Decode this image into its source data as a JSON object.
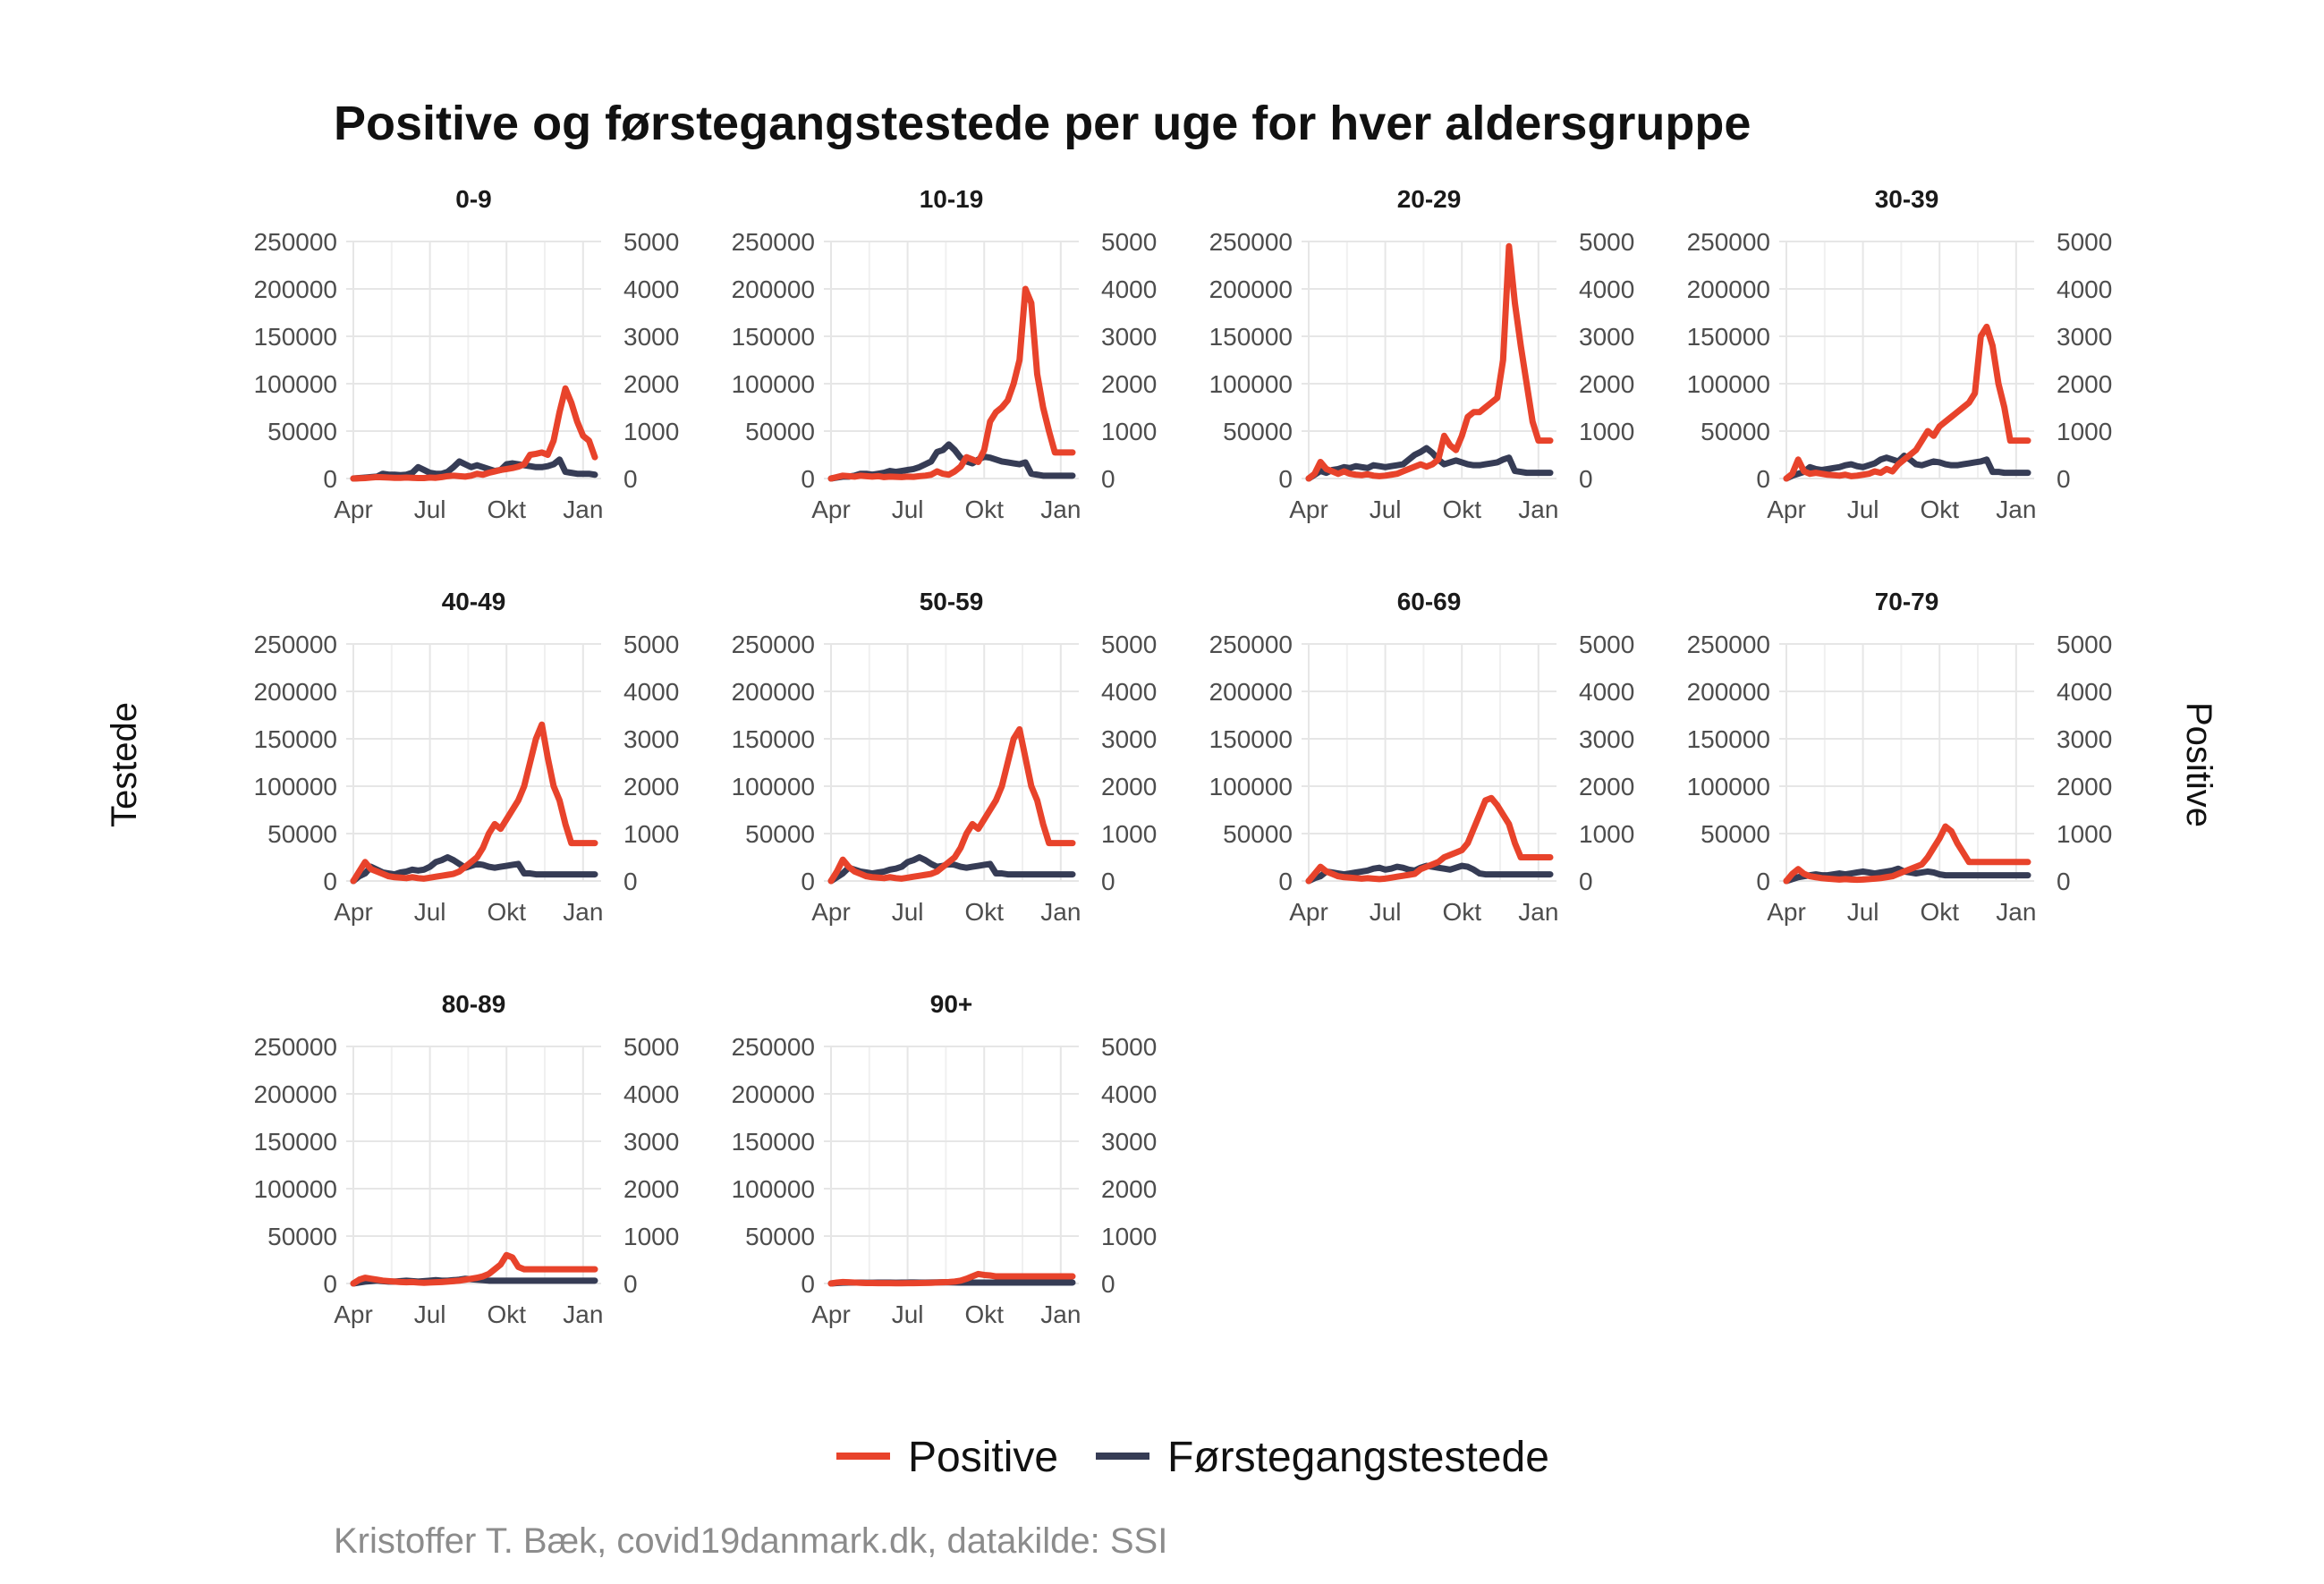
{
  "chart_data": {
    "type": "line",
    "title": "Positive og førstegangstestede per uge for hver aldersgruppe",
    "ylabel_left": "Testede",
    "ylabel_right": "Positive",
    "caption": "Kristoffer T. Bæk, covid19danmark.dk, datakilde: SSI",
    "x_tick_labels": [
      "Apr",
      "Jul",
      "Okt",
      "Jan"
    ],
    "y_left_ticks": [
      "0",
      "50000",
      "100000",
      "150000",
      "200000",
      "250000"
    ],
    "y_right_ticks": [
      "0",
      "1000",
      "2000",
      "3000",
      "4000",
      "5000"
    ],
    "ylim_left": [
      0,
      250000
    ],
    "ylim_right": [
      0,
      5000
    ],
    "weeks": [
      1,
      2,
      3,
      4,
      5,
      6,
      7,
      8,
      9,
      10,
      11,
      12,
      13,
      14,
      15,
      16,
      17,
      18,
      19,
      20,
      21,
      22,
      23,
      24,
      25,
      26,
      27,
      28,
      29,
      30,
      31,
      32,
      33,
      34,
      35,
      36,
      37,
      38,
      39,
      40,
      41,
      42
    ],
    "grid": true,
    "legend_position": "bottom",
    "colors": {
      "Positive": "#e8432b",
      "Førstegangstestede": "#363c55"
    },
    "legend": [
      "Positive",
      "Førstegangstestede"
    ],
    "series": [
      {
        "name": "Positive",
        "axis": "right"
      },
      {
        "name": "Førstegangstestede",
        "axis": "left"
      }
    ],
    "facets": [
      {
        "label": "0-9",
        "positive": [
          0,
          5,
          10,
          20,
          30,
          25,
          20,
          15,
          15,
          20,
          15,
          10,
          10,
          20,
          15,
          30,
          50,
          60,
          50,
          40,
          60,
          100,
          80,
          120,
          150,
          180,
          200,
          220,
          250,
          300,
          500,
          520,
          550,
          500,
          800,
          1400,
          1900,
          1600,
          1200,
          900,
          800,
          450
        ],
        "testede": [
          0,
          500,
          1000,
          1500,
          2000,
          5000,
          4000,
          4000,
          3500,
          4000,
          6000,
          12000,
          9000,
          6000,
          5000,
          5000,
          7000,
          12000,
          18000,
          15000,
          12000,
          14000,
          12000,
          10000,
          8000,
          9000,
          15000,
          16000,
          15000,
          14000,
          13000,
          12000,
          12000,
          13000,
          15000,
          20000,
          7000,
          6000,
          5000,
          5000,
          5000,
          4000
        ]
      },
      {
        "label": "10-19",
        "positive": [
          0,
          30,
          60,
          50,
          40,
          60,
          50,
          40,
          50,
          30,
          40,
          35,
          30,
          40,
          35,
          50,
          60,
          80,
          150,
          100,
          80,
          150,
          250,
          450,
          400,
          350,
          600,
          1200,
          1400,
          1500,
          1650,
          2000,
          2500,
          4000,
          3700,
          2200,
          1500,
          1000,
          550,
          550,
          550,
          550
        ],
        "testede": [
          0,
          1000,
          2000,
          2000,
          3000,
          5000,
          5000,
          4000,
          5000,
          6000,
          8000,
          7000,
          8000,
          9000,
          10000,
          12000,
          15000,
          18000,
          28000,
          30000,
          36000,
          30000,
          22000,
          18000,
          16000,
          20000,
          23000,
          22000,
          20000,
          18000,
          17000,
          16000,
          15000,
          17000,
          5000,
          4000,
          3000,
          3000,
          3000,
          3000,
          3000,
          3000
        ]
      },
      {
        "label": "20-29",
        "positive": [
          0,
          100,
          350,
          200,
          150,
          100,
          150,
          100,
          80,
          70,
          90,
          60,
          50,
          60,
          80,
          100,
          150,
          200,
          250,
          300,
          250,
          300,
          400,
          900,
          700,
          600,
          900,
          1300,
          1400,
          1400,
          1500,
          1600,
          1700,
          2500,
          4900,
          3700,
          2800,
          2000,
          1200,
          800,
          800,
          800
        ],
        "testede": [
          0,
          4000,
          8000,
          6000,
          9000,
          10000,
          12000,
          11000,
          13000,
          12000,
          11000,
          14000,
          13000,
          12000,
          13000,
          14000,
          15000,
          20000,
          25000,
          28000,
          32000,
          27000,
          20000,
          15000,
          17000,
          19000,
          17000,
          15000,
          14000,
          14000,
          15000,
          16000,
          17000,
          20000,
          22000,
          8000,
          7000,
          6000,
          6000,
          6000,
          6000,
          6000
        ]
      },
      {
        "label": "30-39",
        "positive": [
          0,
          100,
          400,
          150,
          100,
          120,
          100,
          80,
          70,
          60,
          80,
          50,
          60,
          80,
          100,
          150,
          120,
          200,
          150,
          300,
          400,
          500,
          600,
          800,
          1000,
          900,
          1100,
          1200,
          1300,
          1400,
          1500,
          1600,
          1800,
          3000,
          3200,
          2800,
          2000,
          1500,
          800,
          800,
          800,
          800
        ],
        "testede": [
          0,
          3000,
          5000,
          7000,
          12000,
          10000,
          9000,
          10000,
          11000,
          12000,
          14000,
          15000,
          13000,
          12000,
          14000,
          16000,
          20000,
          22000,
          20000,
          18000,
          24000,
          20000,
          15000,
          14000,
          16000,
          18000,
          17000,
          15000,
          14000,
          14000,
          15000,
          16000,
          17000,
          18000,
          20000,
          7000,
          7000,
          6000,
          6000,
          6000,
          6000,
          6000
        ]
      },
      {
        "label": "40-49",
        "positive": [
          0,
          200,
          400,
          250,
          200,
          150,
          100,
          80,
          70,
          60,
          80,
          60,
          50,
          70,
          90,
          110,
          130,
          150,
          200,
          300,
          400,
          500,
          700,
          1000,
          1200,
          1100,
          1300,
          1500,
          1700,
          2000,
          2500,
          3000,
          3300,
          2600,
          2000,
          1700,
          1200,
          800,
          800,
          800,
          800,
          800
        ],
        "testede": [
          0,
          5000,
          8000,
          15000,
          12000,
          9000,
          8000,
          7000,
          9000,
          10000,
          12000,
          11000,
          12000,
          15000,
          20000,
          22000,
          25000,
          22000,
          18000,
          14000,
          16000,
          18000,
          17000,
          15000,
          14000,
          15000,
          16000,
          17000,
          18000,
          8000,
          8000,
          7000,
          7000,
          7000,
          7000,
          7000,
          7000,
          7000,
          7000,
          7000,
          7000,
          7000
        ]
      },
      {
        "label": "50-59",
        "positive": [
          0,
          200,
          450,
          300,
          200,
          150,
          100,
          80,
          70,
          60,
          80,
          60,
          50,
          70,
          90,
          110,
          130,
          150,
          200,
          300,
          400,
          500,
          700,
          1000,
          1200,
          1100,
          1300,
          1500,
          1700,
          2000,
          2500,
          3000,
          3200,
          2600,
          2000,
          1700,
          1200,
          800,
          800,
          800,
          800,
          800
        ],
        "testede": [
          0,
          4000,
          8000,
          14000,
          12000,
          10000,
          9000,
          8000,
          9000,
          10000,
          12000,
          13000,
          15000,
          20000,
          22000,
          25000,
          22000,
          18000,
          15000,
          16000,
          18000,
          17000,
          15000,
          14000,
          15000,
          16000,
          17000,
          18000,
          8000,
          8000,
          7000,
          7000,
          7000,
          7000,
          7000,
          7000,
          7000,
          7000,
          7000,
          7000,
          7000,
          7000
        ]
      },
      {
        "label": "60-69",
        "positive": [
          0,
          150,
          300,
          200,
          150,
          100,
          80,
          70,
          60,
          50,
          60,
          50,
          40,
          50,
          70,
          90,
          110,
          130,
          150,
          250,
          300,
          350,
          400,
          500,
          550,
          600,
          650,
          800,
          1100,
          1400,
          1700,
          1750,
          1600,
          1400,
          1200,
          800,
          500,
          500,
          500,
          500,
          500,
          500
        ],
        "testede": [
          0,
          3000,
          5000,
          10000,
          9000,
          8000,
          7000,
          8000,
          9000,
          10000,
          11000,
          13000,
          14000,
          12000,
          13000,
          15000,
          14000,
          12000,
          11000,
          14000,
          16000,
          15000,
          14000,
          13000,
          12000,
          14000,
          16000,
          15000,
          12000,
          8000,
          7000,
          7000,
          7000,
          7000,
          7000,
          7000,
          7000,
          7000,
          7000,
          7000,
          7000,
          7000
        ]
      },
      {
        "label": "70-79",
        "positive": [
          0,
          150,
          250,
          150,
          100,
          80,
          60,
          50,
          40,
          30,
          40,
          30,
          25,
          30,
          40,
          50,
          60,
          80,
          100,
          150,
          200,
          250,
          300,
          350,
          500,
          700,
          900,
          1150,
          1050,
          800,
          600,
          400,
          400,
          400,
          400,
          400,
          400,
          400,
          400,
          400,
          400,
          400
        ],
        "testede": [
          0,
          2000,
          4000,
          5000,
          6000,
          7000,
          6000,
          6000,
          7000,
          8000,
          7000,
          8000,
          9000,
          10000,
          9000,
          8000,
          9000,
          10000,
          11000,
          13000,
          10000,
          9000,
          8000,
          9000,
          10000,
          9000,
          7000,
          6000,
          6000,
          6000,
          6000,
          6000,
          6000,
          6000,
          6000,
          6000,
          6000,
          6000,
          6000,
          6000,
          6000,
          6000
        ]
      },
      {
        "label": "80-89",
        "positive": [
          0,
          80,
          120,
          100,
          80,
          60,
          50,
          40,
          30,
          25,
          30,
          20,
          15,
          20,
          25,
          30,
          40,
          50,
          60,
          80,
          100,
          120,
          150,
          200,
          300,
          400,
          600,
          550,
          350,
          300,
          300,
          300,
          300,
          300,
          300,
          300,
          300,
          300,
          300,
          300,
          300,
          300
        ],
        "testede": [
          0,
          1000,
          2000,
          2500,
          3000,
          2500,
          2000,
          2000,
          2500,
          3000,
          2500,
          2000,
          2500,
          3000,
          3500,
          3000,
          3000,
          3500,
          4000,
          5000,
          4500,
          4000,
          3500,
          3000,
          3000,
          3000,
          3000,
          3000,
          3000,
          3000,
          3000,
          3000,
          3000,
          3000,
          3000,
          3000,
          3000,
          3000,
          3000,
          3000,
          3000,
          3000
        ]
      },
      {
        "label": "90+",
        "positive": [
          0,
          20,
          30,
          25,
          20,
          15,
          10,
          10,
          8,
          6,
          8,
          5,
          5,
          6,
          8,
          10,
          12,
          15,
          20,
          25,
          30,
          40,
          60,
          100,
          150,
          200,
          180,
          170,
          150,
          150,
          150,
          150,
          150,
          150,
          150,
          150,
          150,
          150,
          150,
          150,
          150,
          150
        ],
        "testede": [
          0,
          500,
          800,
          900,
          1000,
          900,
          800,
          800,
          900,
          1000,
          900,
          800,
          900,
          1000,
          1100,
          1000,
          1000,
          1100,
          1200,
          1300,
          1200,
          1100,
          1000,
          1000,
          1000,
          1000,
          1000,
          1000,
          1000,
          1000,
          1000,
          1000,
          1000,
          1000,
          1000,
          1000,
          1000,
          1000,
          1000,
          1000,
          1000,
          1000
        ]
      }
    ]
  }
}
